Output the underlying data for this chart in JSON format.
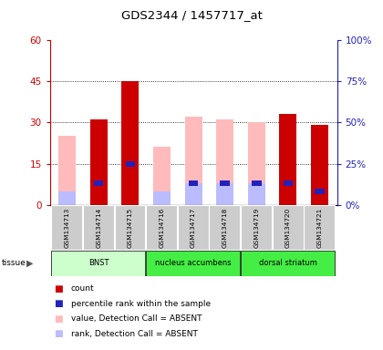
{
  "title": "GDS2344 / 1457717_at",
  "samples": [
    "GSM134713",
    "GSM134714",
    "GSM134715",
    "GSM134716",
    "GSM134717",
    "GSM134718",
    "GSM134719",
    "GSM134720",
    "GSM134721"
  ],
  "red_bars": [
    0,
    31,
    45,
    0,
    0,
    0,
    0,
    33,
    29
  ],
  "blue_bars": [
    0,
    8,
    15,
    0,
    8,
    8,
    8,
    8,
    5
  ],
  "pink_bars": [
    25,
    31,
    0,
    21,
    32,
    31,
    30,
    0,
    0
  ],
  "lightblue_bars": [
    5,
    0,
    0,
    5,
    8,
    8,
    8,
    0,
    0
  ],
  "ylim_left": [
    0,
    60
  ],
  "ylim_right": [
    0,
    100
  ],
  "yticks_left": [
    0,
    15,
    30,
    45,
    60
  ],
  "yticks_right": [
    0,
    25,
    50,
    75,
    100
  ],
  "ytick_labels_left": [
    "0",
    "15",
    "30",
    "45",
    "60"
  ],
  "ytick_labels_right": [
    "0%",
    "25%",
    "50%",
    "75%",
    "100%"
  ],
  "tissue_labels": [
    "BNST",
    "nucleus accumbens",
    "dorsal striatum"
  ],
  "tissue_starts": [
    0,
    3,
    6
  ],
  "tissue_ends": [
    3,
    6,
    9
  ],
  "tissue_colors": [
    "#ccffcc",
    "#44ee44",
    "#44ee44"
  ],
  "legend_items": [
    {
      "color": "#cc0000",
      "label": "count"
    },
    {
      "color": "#2222bb",
      "label": "percentile rank within the sample"
    },
    {
      "color": "#ffbbbb",
      "label": "value, Detection Call = ABSENT"
    },
    {
      "color": "#bbbbff",
      "label": "rank, Detection Call = ABSENT"
    }
  ],
  "red_color": "#cc0000",
  "blue_color": "#2222bb",
  "pink_color": "#ffbbbb",
  "lightblue_color": "#bbbbff",
  "bar_width": 0.55,
  "axis_color_left": "#cc0000",
  "axis_color_right": "#2222bb"
}
